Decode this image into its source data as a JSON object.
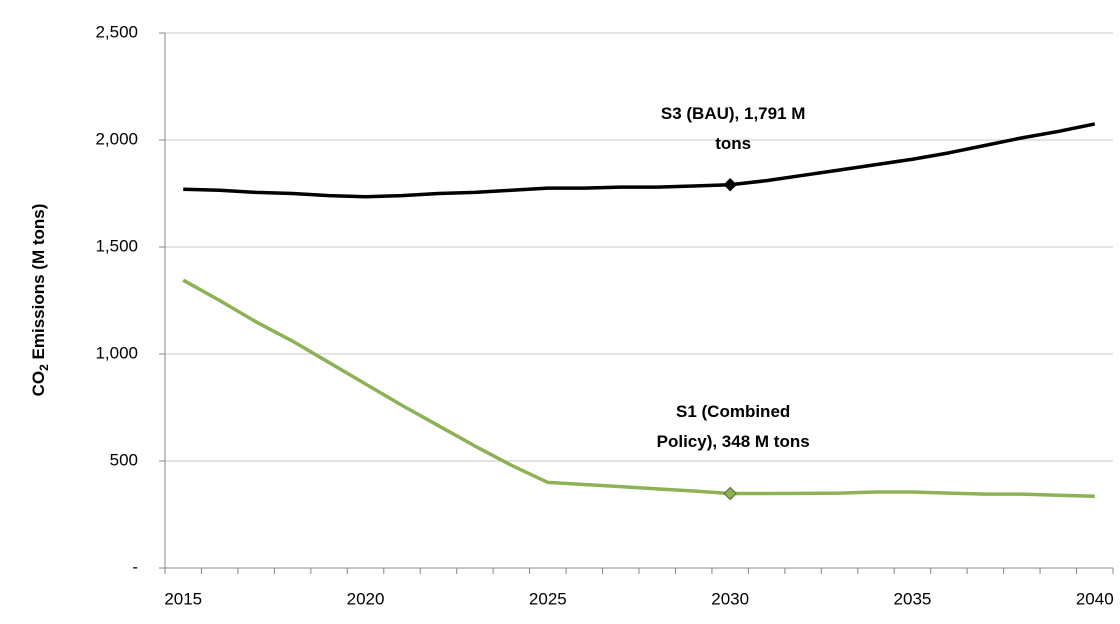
{
  "chart_data": {
    "type": "line",
    "y_label": {
      "main": "CO",
      "sub": "2",
      "rest": " Emissions (M tons)"
    },
    "x": [
      2015,
      2016,
      2017,
      2018,
      2019,
      2020,
      2021,
      2022,
      2023,
      2024,
      2025,
      2026,
      2027,
      2028,
      2029,
      2030,
      2031,
      2032,
      2033,
      2034,
      2035,
      2036,
      2037,
      2038,
      2039,
      2040
    ],
    "series": [
      {
        "name": "S3 (BAU)",
        "color": "#000000",
        "marker_x": 2030,
        "values": [
          1770,
          1765,
          1755,
          1750,
          1740,
          1735,
          1740,
          1750,
          1755,
          1765,
          1775,
          1775,
          1780,
          1780,
          1785,
          1791,
          1810,
          1835,
          1860,
          1885,
          1910,
          1940,
          1975,
          2010,
          2040,
          2075
        ]
      },
      {
        "name": "S1 (Combined Policy)",
        "color": "#8db255",
        "marker_x": 2030,
        "values": [
          1345,
          1250,
          1150,
          1060,
          960,
          860,
          760,
          665,
          570,
          480,
          400,
          390,
          380,
          370,
          360,
          348,
          348,
          349,
          350,
          355,
          355,
          350,
          345,
          345,
          340,
          335
        ]
      }
    ],
    "annotations": [
      {
        "lines": [
          "S3 (BAU), 1,791 M",
          "tons"
        ]
      },
      {
        "lines": [
          "S1 (Combined",
          "Policy), 348 M tons"
        ]
      }
    ],
    "xlim": [
      2014.5,
      2040.5
    ],
    "xticks": [
      2015,
      2020,
      2025,
      2030,
      2035,
      2040
    ],
    "ylim": [
      0,
      2500
    ],
    "yticks": [
      {
        "value": 0,
        "label": "-"
      },
      500,
      {
        "value": 1000,
        "label": "1,000"
      },
      {
        "value": 1500,
        "label": "1,500"
      },
      {
        "value": 2000,
        "label": "2,000"
      },
      {
        "value": 2500,
        "label": "2,500"
      }
    ],
    "grid": true
  }
}
